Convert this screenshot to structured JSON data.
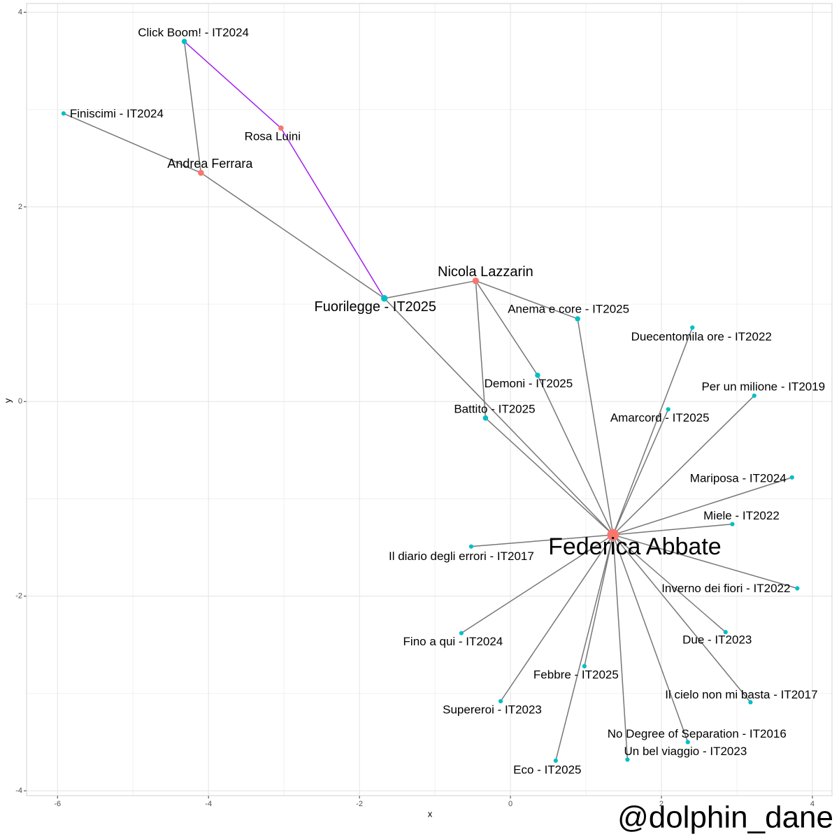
{
  "chart_data": {
    "type": "network",
    "x_label": "x",
    "y_label": "y",
    "watermark": "@dolphin_dane",
    "xlim": [
      -6.41,
      4.26
    ],
    "ylim": [
      -4.05,
      4.09
    ],
    "xticks": [
      -6,
      -4,
      -2,
      0,
      2,
      4
    ],
    "yticks": [
      -4,
      -2,
      0,
      2,
      4
    ],
    "grid": true,
    "nodes": [
      {
        "label": "Click Boom! - IT2024",
        "x": -4.32,
        "y": 3.7,
        "color": "#00bfc4"
      },
      {
        "label": "Finiscimi - IT2024",
        "x": -5.92,
        "y": 2.96,
        "color": "#00bfc4"
      },
      {
        "label": "Rosa Luini",
        "x": -3.04,
        "y": 2.81,
        "color": "#f8766d"
      },
      {
        "label": "Andrea Ferrara",
        "x": -4.1,
        "y": 2.35,
        "color": "#f8766d"
      },
      {
        "label": "Fuorilegge - IT2025",
        "x": -1.67,
        "y": 1.06,
        "color": "#00bfc4"
      },
      {
        "label": "Nicola Lazzarin",
        "x": -0.46,
        "y": 1.24,
        "color": "#f8766d"
      },
      {
        "label": "Anema e core - IT2025",
        "x": 0.89,
        "y": 0.85,
        "color": "#00bfc4"
      },
      {
        "label": "Duecentomila ore - IT2022",
        "x": 2.41,
        "y": 0.76,
        "color": "#00bfc4"
      },
      {
        "label": "Demoni - IT2025",
        "x": 0.36,
        "y": 0.27,
        "color": "#00bfc4"
      },
      {
        "label": "Per un milione - IT2019",
        "x": 3.23,
        "y": 0.06,
        "color": "#00bfc4"
      },
      {
        "label": "Amarcord - IT2025",
        "x": 2.09,
        "y": -0.08,
        "color": "#00bfc4"
      },
      {
        "label": "Battito - IT2025",
        "x": -0.33,
        "y": -0.17,
        "color": "#00bfc4"
      },
      {
        "label": "Mariposa - IT2024",
        "x": 3.73,
        "y": -0.78,
        "color": "#00bfc4"
      },
      {
        "label": "Miele - IT2022",
        "x": 2.94,
        "y": -1.26,
        "color": "#00bfc4"
      },
      {
        "label": "Federica Abbate",
        "x": 1.36,
        "y": -1.37,
        "color": "#f8766d"
      },
      {
        "label": "Il diario degli errori - IT2017",
        "x": -0.52,
        "y": -1.49,
        "color": "#00bfc4"
      },
      {
        "label": "Inverno dei fiori - IT2022",
        "x": 3.8,
        "y": -1.92,
        "color": "#00bfc4"
      },
      {
        "label": "Fino a qui - IT2024",
        "x": -0.65,
        "y": -2.38,
        "color": "#00bfc4"
      },
      {
        "label": "Due - IT2023",
        "x": 2.85,
        "y": -2.37,
        "color": "#00bfc4"
      },
      {
        "label": "Febbre - IT2025",
        "x": 0.98,
        "y": -2.72,
        "color": "#00bfc4"
      },
      {
        "label": "Supereroi - IT2023",
        "x": -0.13,
        "y": -3.08,
        "color": "#00bfc4"
      },
      {
        "label": "Il cielo non mi basta - IT2017",
        "x": 3.18,
        "y": -3.09,
        "color": "#00bfc4"
      },
      {
        "label": "No Degree of Separation - IT2016",
        "x": 2.35,
        "y": -3.5,
        "color": "#00bfc4"
      },
      {
        "label": "Un bel viaggio - IT2023",
        "x": 1.55,
        "y": -3.68,
        "color": "#00bfc4"
      },
      {
        "label": "Eco - IT2025",
        "x": 0.6,
        "y": -3.69,
        "color": "#00bfc4"
      }
    ],
    "edges": [
      {
        "from": 0,
        "to": 3,
        "color": "#777777"
      },
      {
        "from": 0,
        "to": 2,
        "color": "#a020f0"
      },
      {
        "from": 1,
        "to": 3,
        "color": "#777777"
      },
      {
        "from": 3,
        "to": 4,
        "color": "#777777"
      },
      {
        "from": 2,
        "to": 4,
        "color": "#a020f0"
      },
      {
        "from": 4,
        "to": 5,
        "color": "#777777"
      },
      {
        "from": 4,
        "to": 14,
        "color": "#777777"
      },
      {
        "from": 5,
        "to": 6,
        "color": "#777777"
      },
      {
        "from": 5,
        "to": 8,
        "color": "#777777"
      },
      {
        "from": 5,
        "to": 11,
        "color": "#777777"
      },
      {
        "from": 6,
        "to": 14,
        "color": "#777777"
      },
      {
        "from": 8,
        "to": 14,
        "color": "#777777"
      },
      {
        "from": 11,
        "to": 14,
        "color": "#777777"
      },
      {
        "from": 7,
        "to": 14,
        "color": "#777777"
      },
      {
        "from": 9,
        "to": 14,
        "color": "#777777"
      },
      {
        "from": 10,
        "to": 14,
        "color": "#777777"
      },
      {
        "from": 12,
        "to": 14,
        "color": "#777777"
      },
      {
        "from": 13,
        "to": 14,
        "color": "#777777"
      },
      {
        "from": 15,
        "to": 14,
        "color": "#777777"
      },
      {
        "from": 16,
        "to": 14,
        "color": "#777777"
      },
      {
        "from": 17,
        "to": 14,
        "color": "#777777"
      },
      {
        "from": 18,
        "to": 14,
        "color": "#777777"
      },
      {
        "from": 19,
        "to": 14,
        "color": "#777777"
      },
      {
        "from": 20,
        "to": 14,
        "color": "#777777"
      },
      {
        "from": 21,
        "to": 14,
        "color": "#777777"
      },
      {
        "from": 22,
        "to": 14,
        "color": "#777777"
      },
      {
        "from": 23,
        "to": 14,
        "color": "#777777"
      },
      {
        "from": 24,
        "to": 14,
        "color": "#777777"
      }
    ]
  }
}
